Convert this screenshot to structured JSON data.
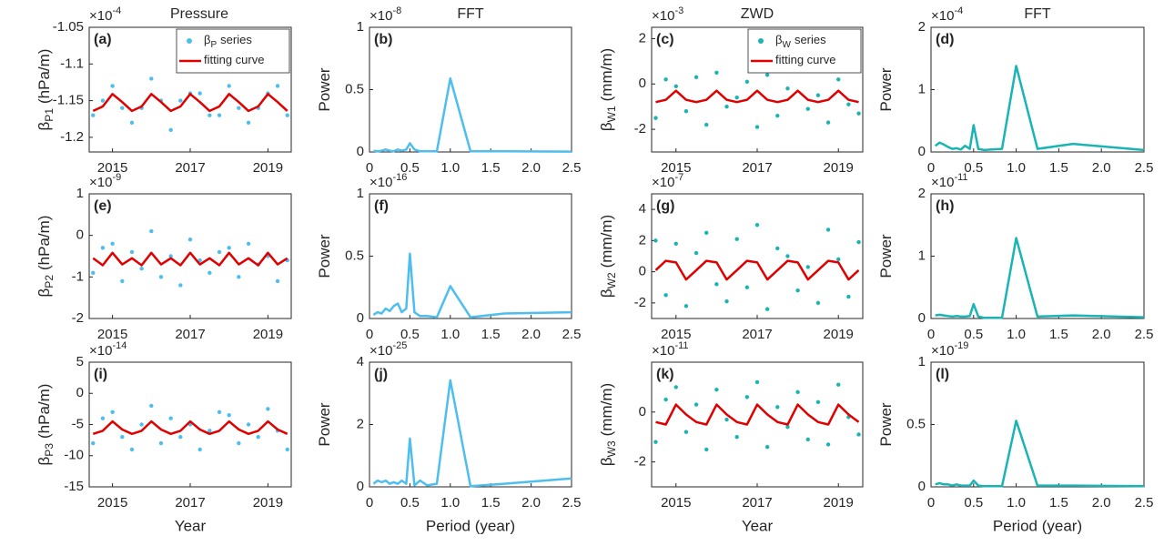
{
  "chart_data": [
    {
      "type": "scatter-line",
      "title": "Pressure",
      "panel_label": "(a)",
      "scale_base": "×10",
      "scale_exponent": "-4",
      "ylabel": "β",
      "ylabel_sub": "P1",
      "ylabel_unit": "(hPa/m)",
      "legend": "upper right",
      "x": [
        2014.5,
        2014.75,
        2015,
        2015.25,
        2015.5,
        2015.75,
        2016,
        2016.25,
        2016.5,
        2016.75,
        2017,
        2017.25,
        2017.5,
        2017.75,
        2018,
        2018.25,
        2018.5,
        2018.75,
        2019,
        2019.25,
        2019.5
      ],
      "xlim": [
        2014.4,
        2019.6
      ],
      "xticks": [
        2015,
        2017,
        2019
      ],
      "ylim": [
        -1.22,
        -1.05
      ],
      "yticks": [
        -1.2,
        -1.15,
        -1.1,
        -1.05
      ],
      "series": [
        {
          "name": "β",
          "name_sub": "P",
          "name_tail": "series",
          "style": "scatter",
          "color": "#4DBEEE",
          "values": [
            -1.17,
            -1.15,
            -1.13,
            -1.16,
            -1.18,
            -1.16,
            -1.12,
            -1.15,
            -1.19,
            -1.15,
            -1.14,
            -1.14,
            -1.17,
            -1.17,
            -1.13,
            -1.16,
            -1.18,
            -1.16,
            -1.14,
            -1.13,
            -1.17
          ]
        },
        {
          "name": "fitting curve",
          "style": "line",
          "color": "#E00000",
          "values": [
            -1.164,
            -1.158,
            -1.141,
            -1.152,
            -1.164,
            -1.158,
            -1.141,
            -1.152,
            -1.164,
            -1.158,
            -1.141,
            -1.152,
            -1.164,
            -1.158,
            -1.141,
            -1.152,
            -1.164,
            -1.158,
            -1.141,
            -1.152,
            -1.164
          ]
        }
      ]
    },
    {
      "type": "line",
      "title": "FFT",
      "panel_label": "(b)",
      "scale_base": "×10",
      "scale_exponent": "-8",
      "ylabel": "Power",
      "x": [
        0.05,
        0.1,
        0.15,
        0.2,
        0.25,
        0.3,
        0.35,
        0.4,
        0.455,
        0.5,
        0.556,
        0.625,
        0.714,
        0.833,
        1.0,
        1.25,
        1.667,
        2.5
      ],
      "xlim": [
        0,
        2.5
      ],
      "xticks": [
        0,
        0.5,
        {
          "value": 1,
          "label": "1.0"
        },
        1.5,
        {
          "value": 2,
          "label": "2.0"
        },
        2.5
      ],
      "ylim": [
        0,
        1
      ],
      "yticks": [
        0,
        0.5,
        1
      ],
      "series": [
        {
          "style": "line",
          "color": "#4DBEEE",
          "values": [
            0.01,
            0.005,
            0.01,
            0.02,
            0.01,
            0.005,
            0.02,
            0.01,
            0.02,
            0.07,
            0.02,
            0.005,
            0.005,
            0.005,
            0.59,
            0.005,
            0.005,
            0.003
          ]
        }
      ]
    },
    {
      "type": "scatter-line",
      "title": "ZWD",
      "panel_label": "(c)",
      "scale_base": "×10",
      "scale_exponent": "-3",
      "ylabel": "β",
      "ylabel_sub": "W1",
      "ylabel_unit": "(mm/m)",
      "legend": "upper right",
      "x": [
        2014.5,
        2014.75,
        2015,
        2015.25,
        2015.5,
        2015.75,
        2016,
        2016.25,
        2016.5,
        2016.75,
        2017,
        2017.25,
        2017.5,
        2017.75,
        2018,
        2018.25,
        2018.5,
        2018.75,
        2019,
        2019.25,
        2019.5
      ],
      "xlim": [
        2014.4,
        2019.6
      ],
      "xticks": [
        2015,
        2017,
        2019
      ],
      "ylim": [
        -3,
        2.5
      ],
      "yticks": [
        -2,
        0,
        2
      ],
      "series": [
        {
          "name": "β",
          "name_sub": "W",
          "name_tail": "series",
          "style": "scatter",
          "color": "#1AB4B4",
          "values": [
            -1.5,
            0.2,
            -0.1,
            -1.2,
            0.3,
            -1.8,
            0.5,
            -1.0,
            -0.6,
            0.1,
            -1.9,
            0.4,
            -1.4,
            -0.2,
            0.6,
            -1.1,
            -0.5,
            -1.7,
            0.2,
            -0.9,
            -1.3
          ]
        },
        {
          "name": "fitting curve",
          "style": "line",
          "color": "#E00000",
          "values": [
            -0.8,
            -0.7,
            -0.3,
            -0.7,
            -0.8,
            -0.7,
            -0.3,
            -0.7,
            -0.8,
            -0.7,
            -0.3,
            -0.7,
            -0.8,
            -0.7,
            -0.3,
            -0.7,
            -0.8,
            -0.7,
            -0.3,
            -0.7,
            -0.8
          ]
        }
      ]
    },
    {
      "type": "line",
      "title": "FFT",
      "panel_label": "(d)",
      "scale_base": "×10",
      "scale_exponent": "-4",
      "ylabel": "Power",
      "x": [
        0.05,
        0.1,
        0.15,
        0.2,
        0.25,
        0.3,
        0.35,
        0.4,
        0.455,
        0.5,
        0.556,
        0.625,
        0.714,
        0.833,
        1.0,
        1.25,
        1.667,
        2.5
      ],
      "xlim": [
        0,
        2.5
      ],
      "xticks": [
        0,
        0.5,
        {
          "value": 1,
          "label": "1.0"
        },
        1.5,
        {
          "value": 2,
          "label": "2.0"
        },
        2.5
      ],
      "ylim": [
        0,
        2
      ],
      "yticks": [
        0,
        1,
        2
      ],
      "series": [
        {
          "style": "line",
          "color": "#1AB4B4",
          "values": [
            0.1,
            0.15,
            0.12,
            0.08,
            0.05,
            0.06,
            0.04,
            0.1,
            0.05,
            0.43,
            0.05,
            0.03,
            0.04,
            0.05,
            1.38,
            0.05,
            0.13,
            0.03
          ]
        }
      ]
    },
    {
      "type": "scatter-line",
      "panel_label": "(e)",
      "scale_base": "×10",
      "scale_exponent": "-9",
      "ylabel": "β",
      "ylabel_sub": "P2",
      "ylabel_unit": "(hPa/m)",
      "x": [
        2014.5,
        2014.75,
        2015,
        2015.25,
        2015.5,
        2015.75,
        2016,
        2016.25,
        2016.5,
        2016.75,
        2017,
        2017.25,
        2017.5,
        2017.75,
        2018,
        2018.25,
        2018.5,
        2018.75,
        2019,
        2019.25,
        2019.5
      ],
      "xlim": [
        2014.4,
        2019.6
      ],
      "xticks": [
        2015,
        2017,
        2019
      ],
      "ylim": [
        -2,
        1
      ],
      "yticks": [
        -2,
        -1,
        0,
        1
      ],
      "series": [
        {
          "style": "scatter",
          "color": "#4DBEEE",
          "values": [
            -0.9,
            -0.3,
            -0.2,
            -1.1,
            -0.4,
            -0.8,
            0.1,
            -1.0,
            -0.5,
            -1.2,
            -0.1,
            -0.6,
            -0.9,
            -0.4,
            -0.3,
            -1.0,
            -0.2,
            -0.7,
            -0.5,
            -1.1,
            -0.6
          ]
        },
        {
          "style": "line",
          "color": "#E00000",
          "values": [
            -0.55,
            -0.72,
            -0.42,
            -0.7,
            -0.55,
            -0.72,
            -0.42,
            -0.7,
            -0.55,
            -0.72,
            -0.42,
            -0.7,
            -0.55,
            -0.72,
            -0.42,
            -0.7,
            -0.55,
            -0.72,
            -0.42,
            -0.7,
            -0.55
          ]
        }
      ]
    },
    {
      "type": "line",
      "panel_label": "(f)",
      "scale_base": "×10",
      "scale_exponent": "-16",
      "ylabel": "Power",
      "x": [
        0.05,
        0.1,
        0.15,
        0.2,
        0.25,
        0.3,
        0.35,
        0.4,
        0.455,
        0.5,
        0.556,
        0.625,
        0.714,
        0.833,
        1.0,
        1.25,
        1.667,
        2.5
      ],
      "xlim": [
        0,
        2.5
      ],
      "xticks": [
        0,
        0.5,
        {
          "value": 1,
          "label": "1.0"
        },
        1.5,
        {
          "value": 2,
          "label": "2.0"
        },
        2.5
      ],
      "ylim": [
        0,
        1
      ],
      "yticks": [
        0,
        0.5,
        1
      ],
      "series": [
        {
          "style": "line",
          "color": "#4DBEEE",
          "values": [
            0.03,
            0.05,
            0.04,
            0.08,
            0.06,
            0.1,
            0.12,
            0.05,
            0.08,
            0.52,
            0.05,
            0.02,
            0.02,
            0.01,
            0.26,
            0.01,
            0.04,
            0.05
          ]
        }
      ]
    },
    {
      "type": "scatter-line",
      "panel_label": "(g)",
      "scale_base": "×10",
      "scale_exponent": "-7",
      "ylabel": "β",
      "ylabel_sub": "W2",
      "ylabel_unit": "(mm/m)",
      "x": [
        2014.5,
        2014.75,
        2015,
        2015.25,
        2015.5,
        2015.75,
        2016,
        2016.25,
        2016.5,
        2016.75,
        2017,
        2017.25,
        2017.5,
        2017.75,
        2018,
        2018.25,
        2018.5,
        2018.75,
        2019,
        2019.25,
        2019.5
      ],
      "xlim": [
        2014.4,
        2019.6
      ],
      "xticks": [
        2015,
        2017,
        2019
      ],
      "ylim": [
        -3,
        5
      ],
      "yticks": [
        -2,
        0,
        2,
        4
      ],
      "series": [
        {
          "style": "scatter",
          "color": "#1AB4B4",
          "values": [
            2.0,
            -1.5,
            1.8,
            -2.2,
            1.2,
            2.5,
            -0.8,
            -1.9,
            2.1,
            -1.0,
            3.0,
            -2.4,
            1.5,
            1.0,
            -1.2,
            0.3,
            -2.0,
            2.7,
            0.8,
            -1.6,
            1.9
          ]
        },
        {
          "style": "line",
          "color": "#E00000",
          "values": [
            0.1,
            0.7,
            0.6,
            -0.5,
            0.1,
            0.7,
            0.6,
            -0.5,
            0.1,
            0.7,
            0.6,
            -0.5,
            0.1,
            0.7,
            0.6,
            -0.5,
            0.1,
            0.7,
            0.6,
            -0.5,
            0.1
          ]
        }
      ]
    },
    {
      "type": "line",
      "panel_label": "(h)",
      "scale_base": "×10",
      "scale_exponent": "-11",
      "ylabel": "Power",
      "x": [
        0.05,
        0.1,
        0.15,
        0.2,
        0.25,
        0.3,
        0.35,
        0.4,
        0.455,
        0.5,
        0.556,
        0.625,
        0.714,
        0.833,
        1.0,
        1.25,
        1.667,
        2.5
      ],
      "xlim": [
        0,
        2.5
      ],
      "xticks": [
        0,
        0.5,
        {
          "value": 1,
          "label": "1.0"
        },
        1.5,
        {
          "value": 2,
          "label": "2.0"
        },
        2.5
      ],
      "ylim": [
        0,
        2
      ],
      "yticks": [
        0,
        1,
        2
      ],
      "series": [
        {
          "style": "line",
          "color": "#1AB4B4",
          "values": [
            0.05,
            0.06,
            0.05,
            0.04,
            0.03,
            0.04,
            0.03,
            0.03,
            0.04,
            0.23,
            0.03,
            0.01,
            0.01,
            0.01,
            1.29,
            0.03,
            0.05,
            0.02
          ]
        }
      ]
    },
    {
      "type": "scatter-line",
      "panel_label": "(i)",
      "scale_base": "×10",
      "scale_exponent": "-14",
      "ylabel": "β",
      "ylabel_sub": "P3",
      "ylabel_unit": "(hPa/m)",
      "xlabel": "Year",
      "x": [
        2014.5,
        2014.75,
        2015,
        2015.25,
        2015.5,
        2015.75,
        2016,
        2016.25,
        2016.5,
        2016.75,
        2017,
        2017.25,
        2017.5,
        2017.75,
        2018,
        2018.25,
        2018.5,
        2018.75,
        2019,
        2019.25,
        2019.5
      ],
      "xlim": [
        2014.4,
        2019.6
      ],
      "xticks": [
        2015,
        2017,
        2019
      ],
      "ylim": [
        -15,
        5
      ],
      "yticks": [
        -15,
        -10,
        -5,
        0,
        5
      ],
      "series": [
        {
          "style": "scatter",
          "color": "#4DBEEE",
          "values": [
            -8,
            -4,
            -3,
            -7,
            -9,
            -5,
            -2,
            -8,
            -4,
            -7,
            -5,
            -9,
            -6,
            -3,
            -3.5,
            -8,
            -5,
            -7,
            -2.5,
            -6,
            -9
          ]
        },
        {
          "style": "line",
          "color": "#E00000",
          "values": [
            -6.5,
            -6,
            -4.5,
            -5.8,
            -6.5,
            -6,
            -4.5,
            -5.8,
            -6.5,
            -6,
            -4.5,
            -5.8,
            -6.5,
            -6,
            -4.5,
            -5.8,
            -6.5,
            -6,
            -4.5,
            -5.8,
            -6.5
          ]
        }
      ]
    },
    {
      "type": "line",
      "panel_label": "(j)",
      "scale_base": "×10",
      "scale_exponent": "-25",
      "ylabel": "Power",
      "xlabel": "Period (year)",
      "x": [
        0.05,
        0.1,
        0.15,
        0.2,
        0.25,
        0.3,
        0.35,
        0.4,
        0.455,
        0.5,
        0.556,
        0.625,
        0.714,
        0.833,
        1.0,
        1.25,
        1.667,
        2.5
      ],
      "xlim": [
        0,
        2.5
      ],
      "xticks": [
        0,
        0.5,
        {
          "value": 1,
          "label": "1.0"
        },
        1.5,
        {
          "value": 2,
          "label": "2.0"
        },
        2.5
      ],
      "ylim": [
        0,
        4
      ],
      "yticks": [
        0,
        2,
        4
      ],
      "series": [
        {
          "style": "line",
          "color": "#4DBEEE",
          "values": [
            0.1,
            0.2,
            0.15,
            0.2,
            0.1,
            0.15,
            0.1,
            0.2,
            0.1,
            1.55,
            0.05,
            0.2,
            0.05,
            0.1,
            3.42,
            0.02,
            0.1,
            0.27
          ]
        }
      ]
    },
    {
      "type": "scatter-line",
      "panel_label": "(k)",
      "scale_base": "×10",
      "scale_exponent": "-11",
      "ylabel": "β",
      "ylabel_sub": "W3",
      "ylabel_unit": "(mm/m)",
      "xlabel": "Year",
      "x": [
        2014.5,
        2014.75,
        2015,
        2015.25,
        2015.5,
        2015.75,
        2016,
        2016.25,
        2016.5,
        2016.75,
        2017,
        2017.25,
        2017.5,
        2017.75,
        2018,
        2018.25,
        2018.5,
        2018.75,
        2019,
        2019.25,
        2019.5
      ],
      "xlim": [
        2014.4,
        2019.6
      ],
      "xticks": [
        2015,
        2017,
        2019
      ],
      "ylim": [
        -3,
        2
      ],
      "yticks": [
        -2,
        0
      ],
      "series": [
        {
          "style": "scatter",
          "color": "#1AB4B4",
          "values": [
            -1.2,
            0.5,
            1.0,
            -0.8,
            0.3,
            -1.5,
            0.9,
            -0.3,
            -1.0,
            0.6,
            1.2,
            -1.4,
            0.2,
            -0.6,
            0.8,
            -1.1,
            0.4,
            -1.3,
            1.1,
            -0.2,
            -0.9
          ]
        },
        {
          "style": "line",
          "color": "#E00000",
          "values": [
            -0.4,
            -0.5,
            0.3,
            -0.1,
            -0.4,
            -0.5,
            0.3,
            -0.1,
            -0.4,
            -0.5,
            0.3,
            -0.1,
            -0.4,
            -0.5,
            0.3,
            -0.1,
            -0.4,
            -0.5,
            0.3,
            -0.1,
            -0.4
          ]
        }
      ]
    },
    {
      "type": "line",
      "panel_label": "(l)",
      "scale_base": "×10",
      "scale_exponent": "-19",
      "ylabel": "Power",
      "xlabel": "Period (year)",
      "x": [
        0.05,
        0.1,
        0.15,
        0.2,
        0.25,
        0.3,
        0.35,
        0.4,
        0.455,
        0.5,
        0.556,
        0.625,
        0.714,
        0.833,
        1.0,
        1.25,
        1.667,
        2.5
      ],
      "xlim": [
        0,
        2.5
      ],
      "xticks": [
        0,
        0.5,
        {
          "value": 1,
          "label": "1.0"
        },
        1.5,
        {
          "value": 2,
          "label": "2.0"
        },
        2.5
      ],
      "ylim": [
        0,
        1
      ],
      "yticks": [
        0,
        0.5,
        1
      ],
      "series": [
        {
          "style": "line",
          "color": "#1AB4B4",
          "values": [
            0.02,
            0.03,
            0.02,
            0.02,
            0.01,
            0.02,
            0.01,
            0.01,
            0.01,
            0.05,
            0.01,
            0.005,
            0.005,
            0.005,
            0.53,
            0.01,
            0.01,
            0.005
          ]
        }
      ]
    }
  ]
}
